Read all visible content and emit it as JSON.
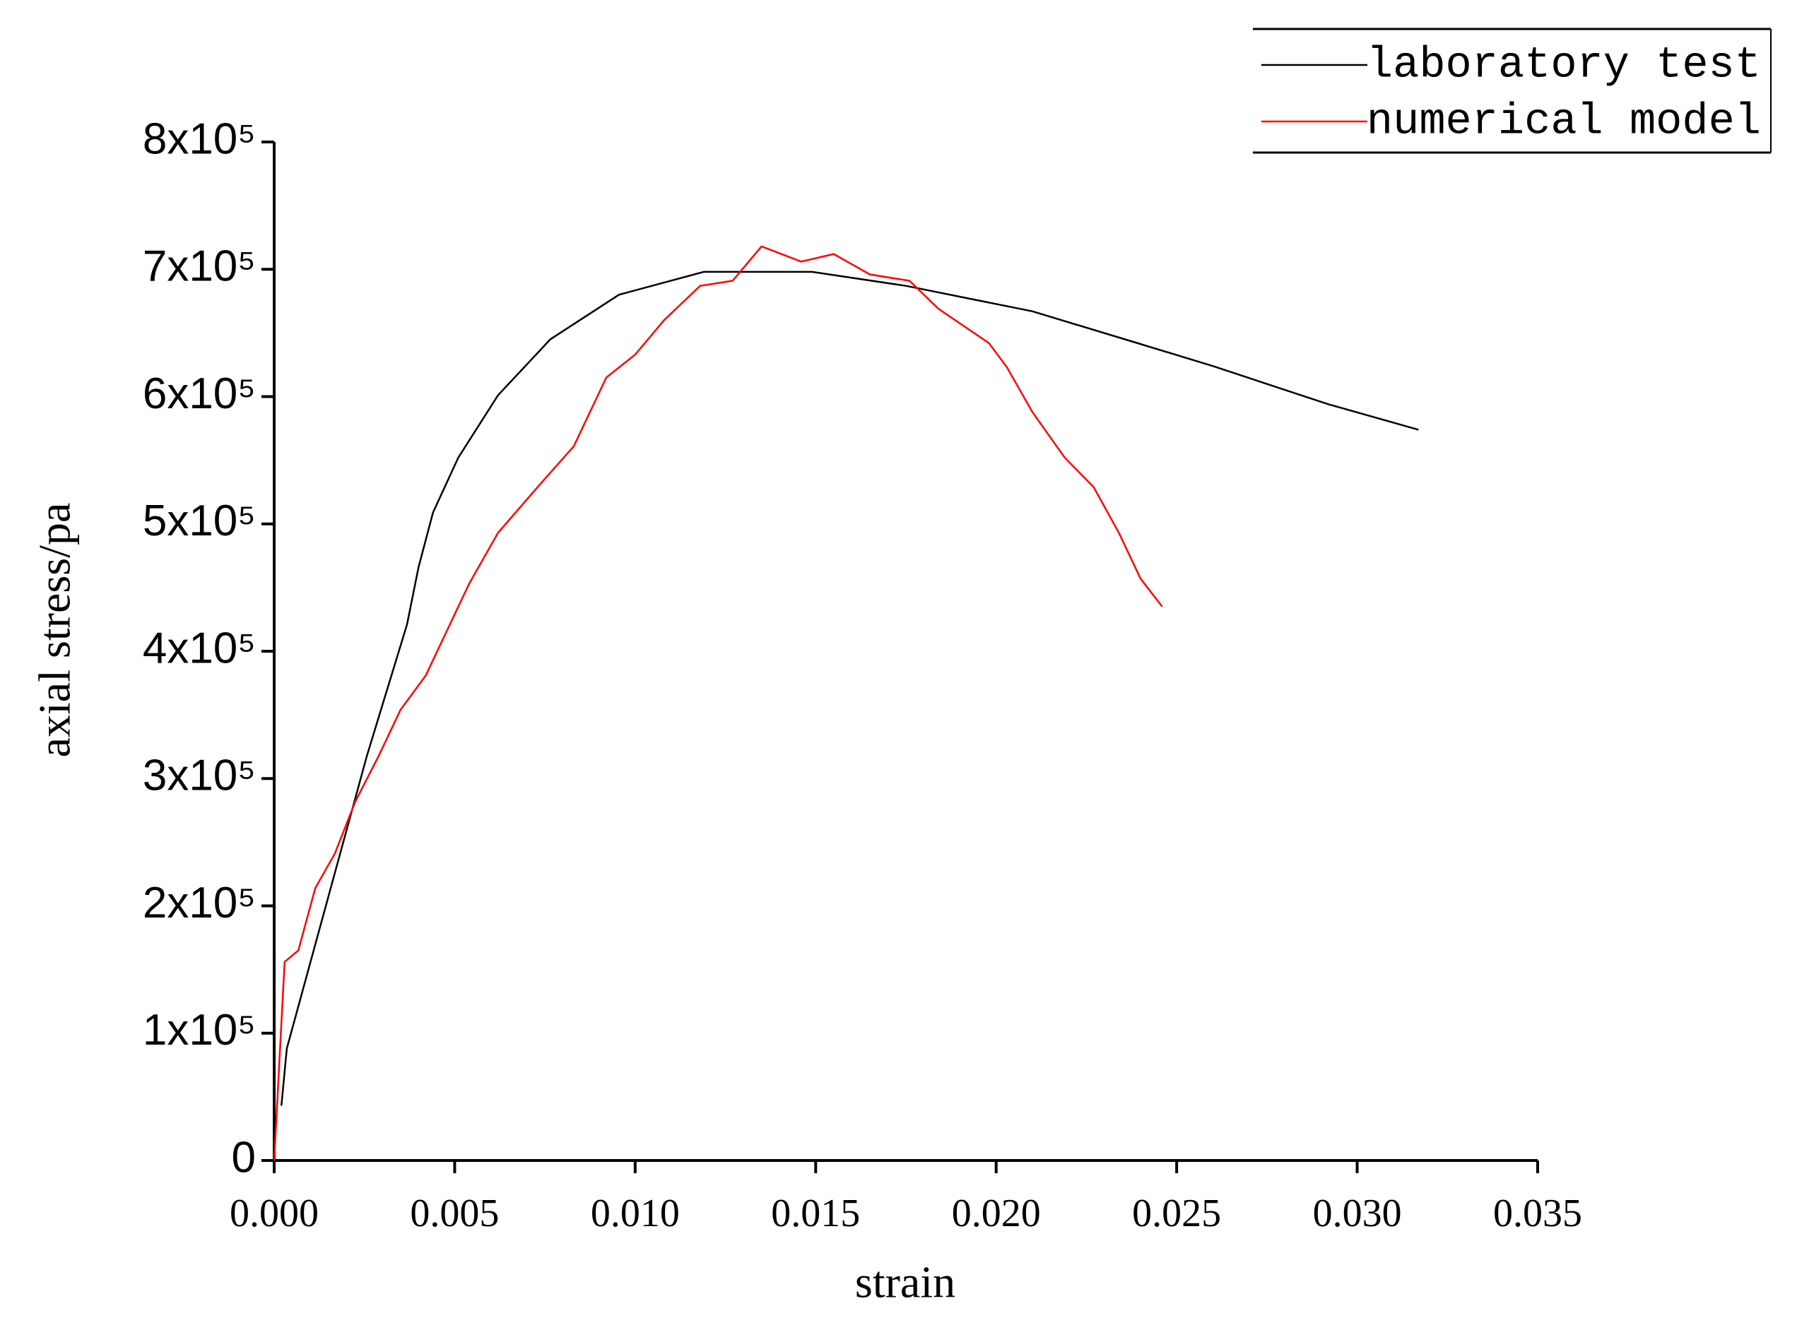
{
  "chart_data": {
    "type": "line",
    "x_label": "strain",
    "y_label": "axial stress/pa",
    "xlim": [
      0,
      0.035
    ],
    "xticks": [
      {
        "value": 0,
        "label": "0.000"
      },
      0.005,
      {
        "value": 0.01,
        "label": "0.010"
      },
      0.015,
      {
        "value": 0.02,
        "label": "0.020"
      },
      0.025,
      {
        "value": 0.03,
        "label": "0.030"
      },
      0.035
    ],
    "ylim": [
      0,
      800000
    ],
    "yticks": [
      0,
      {
        "value": 100000,
        "label": "1x10⁵"
      },
      {
        "value": 200000,
        "label": "2x10⁵"
      },
      {
        "value": 300000,
        "label": "3x10⁵"
      },
      {
        "value": 400000,
        "label": "4x10⁵"
      },
      {
        "value": 500000,
        "label": "5x10⁵"
      },
      {
        "value": 600000,
        "label": "6x10⁵"
      },
      {
        "value": 700000,
        "label": "7x10⁵"
      },
      {
        "value": 800000,
        "label": "8x10⁵"
      }
    ],
    "legend_position": "upper right",
    "series": [
      {
        "name": "laboratory test",
        "color": "#000000",
        "x": [
          0.0002,
          0.00035,
          0.00257,
          0.00368,
          0.004,
          0.0044,
          0.0051,
          0.0062,
          0.00765,
          0.00955,
          0.0119,
          0.0149,
          0.0175,
          0.021,
          0.0238,
          0.026,
          0.0292,
          0.0317
        ],
        "values": [
          43000,
          88000,
          318000,
          421000,
          466000,
          509000,
          552000,
          601000,
          645000,
          680000,
          698000,
          698000,
          687000,
          667000,
          643000,
          624000,
          594000,
          574000
        ]
      },
      {
        "name": "numerical model",
        "color": "#ff0000",
        "x": [
          0,
          0.00029,
          0.00067,
          0.00114,
          0.00168,
          0.00225,
          0.0029,
          0.0035,
          0.0042,
          0.0048,
          0.0054,
          0.0062,
          0.0073,
          0.0083,
          0.0092,
          0.01,
          0.0108,
          0.0118,
          0.0127,
          0.0135,
          0.0146,
          0.0155,
          0.0165,
          0.0176,
          0.0184,
          0.0198,
          0.0203,
          0.021,
          0.0219,
          0.0227,
          0.0234,
          0.024,
          0.0246
        ],
        "values": [
          0,
          156000,
          165000,
          214000,
          241000,
          282000,
          318000,
          354000,
          381000,
          417000,
          453000,
          493000,
          529000,
          561000,
          615000,
          633000,
          660000,
          687000,
          691000,
          718000,
          706000,
          712000,
          696000,
          691000,
          669000,
          642000,
          623000,
          588000,
          552000,
          529000,
          493000,
          457000,
          435000
        ]
      }
    ]
  }
}
